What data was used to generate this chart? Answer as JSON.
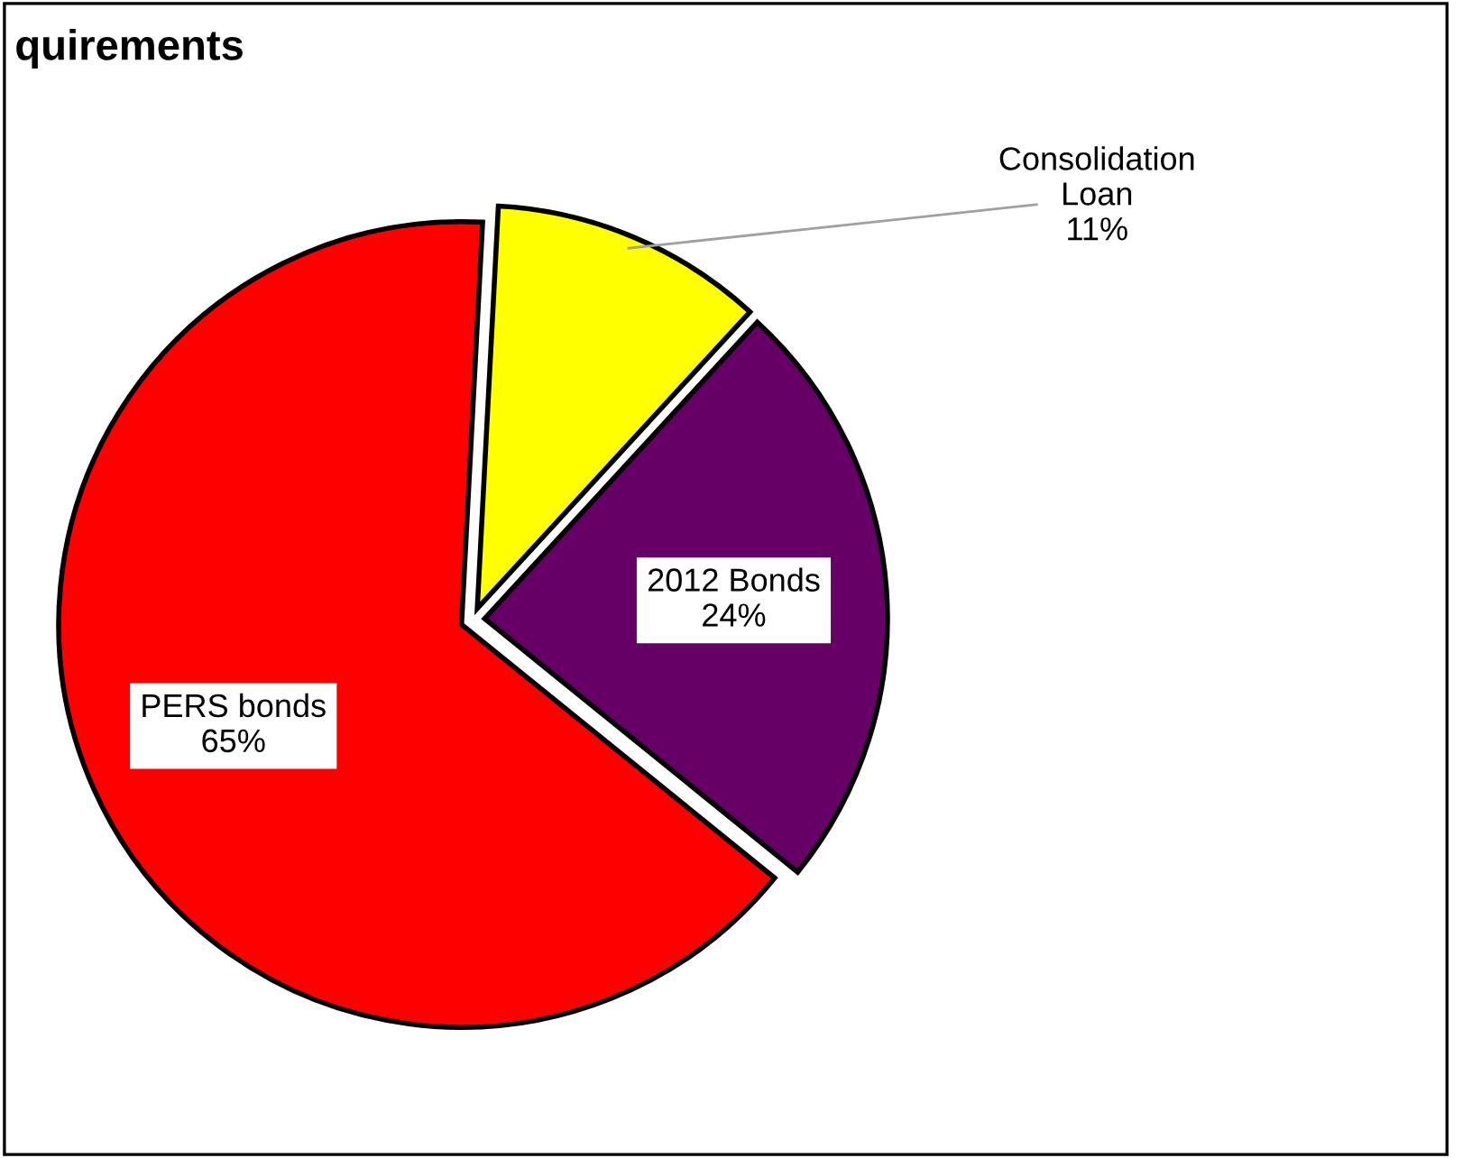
{
  "chart_data": {
    "type": "pie",
    "title": "quirements",
    "categories": [
      "Consolidation\nLoan",
      "2012 Bonds",
      "PERS bonds"
    ],
    "values": [
      11,
      24,
      65
    ],
    "colors": [
      "#ffff00",
      "#660066",
      "#ff0000"
    ],
    "value_labels": [
      "11%",
      "24%",
      "65%"
    ],
    "legend": false
  }
}
